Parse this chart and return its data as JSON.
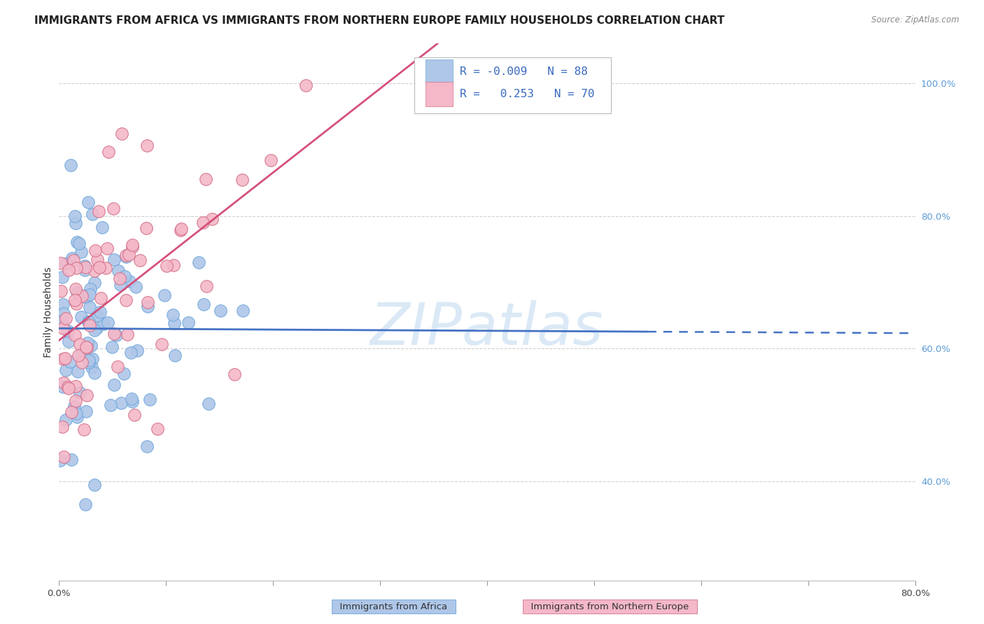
{
  "title": "IMMIGRANTS FROM AFRICA VS IMMIGRANTS FROM NORTHERN EUROPE FAMILY HOUSEHOLDS CORRELATION CHART",
  "source": "Source: ZipAtlas.com",
  "ylabel": "Family Households",
  "xlim": [
    0.0,
    0.8
  ],
  "ylim": [
    0.25,
    1.06
  ],
  "x_ticks": [
    0.0,
    0.1,
    0.2,
    0.3,
    0.4,
    0.5,
    0.6,
    0.7,
    0.8
  ],
  "x_tick_labels": [
    "0.0%",
    "",
    "",
    "",
    "",
    "",
    "",
    "",
    "80.0%"
  ],
  "y_ticks_right": [
    0.4,
    0.6,
    0.8,
    1.0
  ],
  "y_tick_labels_right": [
    "40.0%",
    "60.0%",
    "80.0%",
    "100.0%"
  ],
  "color_africa": "#aec6e8",
  "color_africa_edge": "#6fa8dc",
  "color_northern": "#f4b8c8",
  "color_northern_edge": "#d4708a",
  "trend_africa_color": "#4472c4",
  "trend_northern_color": "#d4507a",
  "watermark": "ZIPatlas",
  "title_fontsize": 11,
  "axis_label_fontsize": 10,
  "tick_fontsize": 9.5,
  "legend_fontsize": 12
}
